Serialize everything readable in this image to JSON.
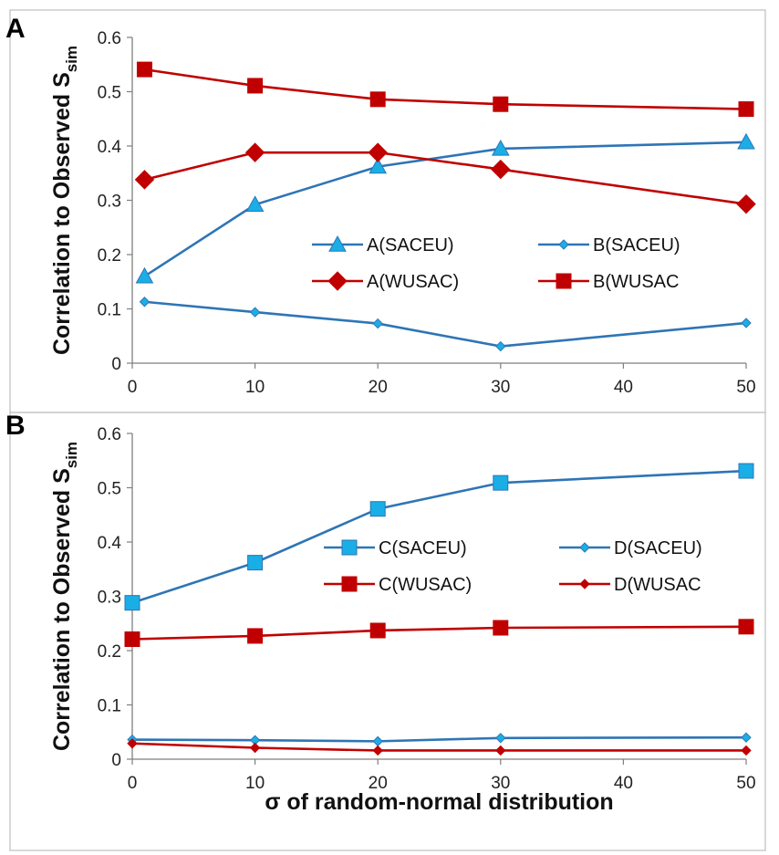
{
  "chart_data": [
    {
      "type": "line",
      "panel_label": "A",
      "ylabel": "Correlation to Observed S",
      "ylabel_sub": "sim",
      "xlabel": "",
      "xlim": [
        0,
        50
      ],
      "ylim": [
        0,
        0.6
      ],
      "xticks": [
        "0",
        "10",
        "20",
        "30",
        "40",
        "50"
      ],
      "yticks": [
        "0",
        "0.1",
        "0.2",
        "0.3",
        "0.4",
        "0.5",
        "0.6"
      ],
      "legend_position": "center-right",
      "x": [
        1,
        10,
        20,
        30,
        50
      ],
      "series": [
        {
          "name": "A(SACEU)",
          "color": "#1aaee6",
          "line_color": "#2e75b6",
          "marker": "triangle",
          "values": [
            0.16,
            0.292,
            0.362,
            0.395,
            0.407
          ]
        },
        {
          "name": "B(SACEU)",
          "color": "#1aaee6",
          "line_color": "#2e75b6",
          "marker": "small-diamond",
          "values": [
            0.113,
            0.094,
            0.073,
            0.031,
            0.074
          ]
        },
        {
          "name": "A(WUSAC)",
          "color": "#c00000",
          "line_color": "#c00000",
          "marker": "diamond",
          "values": [
            0.338,
            0.388,
            0.388,
            0.357,
            0.293
          ]
        },
        {
          "name": "B(WUSAC",
          "color": "#c00000",
          "line_color": "#c00000",
          "marker": "square",
          "values": [
            0.541,
            0.511,
            0.486,
            0.477,
            0.468
          ]
        }
      ]
    },
    {
      "type": "line",
      "panel_label": "B",
      "ylabel": "Correlation to Observed S",
      "ylabel_sub": "sim",
      "xlabel": "σ of random-normal distribution",
      "xlim": [
        0,
        50
      ],
      "ylim": [
        0,
        0.6
      ],
      "xticks": [
        "0",
        "10",
        "20",
        "30",
        "40",
        "50"
      ],
      "yticks": [
        "0",
        "0.1",
        "0.2",
        "0.3",
        "0.4",
        "0.5",
        "0.6"
      ],
      "legend_position": "center-right",
      "x": [
        0,
        10,
        20,
        30,
        50
      ],
      "series": [
        {
          "name": "C(SACEU)",
          "color": "#1aaee6",
          "line_color": "#2e75b6",
          "marker": "square",
          "values": [
            0.288,
            0.362,
            0.461,
            0.509,
            0.531
          ]
        },
        {
          "name": "D(SACEU)",
          "color": "#1aaee6",
          "line_color": "#2e75b6",
          "marker": "small-diamond",
          "values": [
            0.036,
            0.035,
            0.033,
            0.039,
            0.04
          ]
        },
        {
          "name": "C(WUSAC)",
          "color": "#c00000",
          "line_color": "#c00000",
          "marker": "square",
          "values": [
            0.221,
            0.227,
            0.237,
            0.242,
            0.244
          ]
        },
        {
          "name": "D(WUSAC",
          "color": "#c00000",
          "line_color": "#c00000",
          "marker": "small-diamond",
          "values": [
            0.029,
            0.021,
            0.016,
            0.016,
            0.016
          ]
        }
      ]
    }
  ]
}
